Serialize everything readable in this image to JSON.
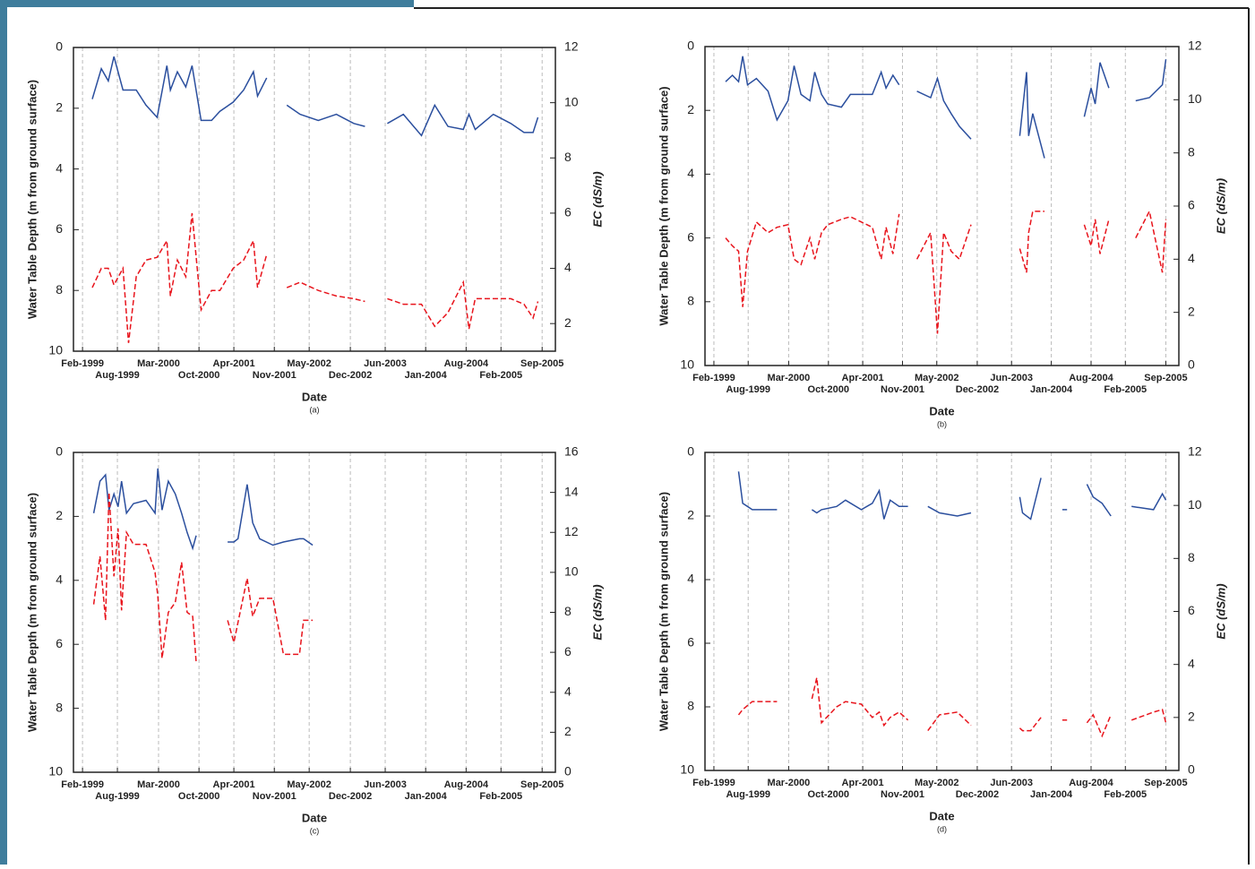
{
  "chart_data": [
    {
      "type": "line",
      "caption": "(a)",
      "xlabel": "Date",
      "ylabel": "Water Table Depth (m from ground surface)",
      "y2label": "EC (dS/m)",
      "xlim": [
        1998.95,
        2005.86
      ],
      "xticks": [
        {
          "value": 1999.08,
          "label": "Feb-1999"
        },
        {
          "value": 1999.58,
          "label": "Aug-1999"
        },
        {
          "value": 2000.17,
          "label": "Mar-2000"
        },
        {
          "value": 2000.75,
          "label": "Oct-2000"
        },
        {
          "value": 2001.25,
          "label": "Apr-2001"
        },
        {
          "value": 2001.83,
          "label": "Nov-2001"
        },
        {
          "value": 2002.33,
          "label": "May-2002"
        },
        {
          "value": 2002.92,
          "label": "Dec-2002"
        },
        {
          "value": 2003.42,
          "label": "Jun-2003"
        },
        {
          "value": 2004.0,
          "label": "Jan-2004"
        },
        {
          "value": 2004.58,
          "label": "Aug-2004"
        },
        {
          "value": 2005.08,
          "label": "Feb-2005"
        },
        {
          "value": 2005.67,
          "label": "Sep-2005"
        }
      ],
      "ylim": [
        10,
        0
      ],
      "yticks": [
        0,
        2,
        4,
        6,
        8,
        10
      ],
      "y2lim": [
        1,
        12
      ],
      "y2ticks": [
        2,
        4,
        6,
        8,
        10,
        12
      ],
      "grid": true,
      "x": [
        1999.22,
        1999.35,
        1999.45,
        1999.53,
        1999.66,
        1999.74,
        1999.85,
        1999.99,
        2000.15,
        2000.29,
        2000.34,
        2000.44,
        2000.56,
        2000.65,
        2000.78,
        2000.93,
        2001.05,
        2001.24,
        2001.39,
        2001.53,
        2001.59,
        2001.72,
        2001.86,
        2002.01,
        2002.2,
        2002.46,
        2002.72,
        2002.97,
        2003.13,
        2003.3,
        2003.45,
        2003.68,
        2003.94,
        2004.13,
        2004.32,
        2004.54,
        2004.62,
        2004.71,
        2004.97,
        2005.22,
        2005.41,
        2005.54,
        2005.61
      ],
      "series": [
        {
          "color": "#2b4f9e",
          "values": [
            1.7,
            0.7,
            1.1,
            0.3,
            1.4,
            1.4,
            1.4,
            1.9,
            2.3,
            0.6,
            1.4,
            0.8,
            1.3,
            0.6,
            2.4,
            2.4,
            2.1,
            1.8,
            1.4,
            0.8,
            1.6,
            1.0,
            null,
            1.9,
            2.2,
            2.4,
            2.2,
            2.5,
            2.6,
            null,
            2.5,
            2.2,
            2.9,
            1.9,
            2.6,
            2.7,
            2.2,
            2.7,
            2.2,
            2.5,
            2.8,
            2.8,
            2.3
          ]
        },
        {
          "color": "#e8141c",
          "dashed": true,
          "axis": "y2",
          "values": [
            3.3,
            4.0,
            4.0,
            3.4,
            4.0,
            1.3,
            3.7,
            4.3,
            4.4,
            5.0,
            3.0,
            4.3,
            3.7,
            6.0,
            2.5,
            3.2,
            3.2,
            4.0,
            4.3,
            5.0,
            3.3,
            4.5,
            null,
            3.3,
            3.5,
            3.2,
            3.0,
            2.9,
            2.8,
            null,
            2.9,
            2.7,
            2.7,
            1.9,
            2.4,
            3.5,
            1.8,
            2.9,
            2.9,
            2.9,
            2.7,
            2.2,
            2.8
          ]
        }
      ]
    },
    {
      "type": "line",
      "caption": "(b)",
      "xlabel": "Date",
      "ylabel": "Water Table Depth (m from ground surface)",
      "y2label": "EC (dS/m)",
      "xlim": [
        1998.95,
        2005.86
      ],
      "xticks": [
        {
          "value": 1999.08,
          "label": "Feb-1999"
        },
        {
          "value": 1999.58,
          "label": "Aug-1999"
        },
        {
          "value": 2000.17,
          "label": "Mar-2000"
        },
        {
          "value": 2000.75,
          "label": "Oct-2000"
        },
        {
          "value": 2001.25,
          "label": "Apr-2001"
        },
        {
          "value": 2001.83,
          "label": "Nov-2001"
        },
        {
          "value": 2002.33,
          "label": "May-2002"
        },
        {
          "value": 2002.92,
          "label": "Dec-2002"
        },
        {
          "value": 2003.42,
          "label": "Jun-2003"
        },
        {
          "value": 2004.0,
          "label": "Jan-2004"
        },
        {
          "value": 2004.58,
          "label": "Aug-2004"
        },
        {
          "value": 2005.08,
          "label": "Feb-2005"
        },
        {
          "value": 2005.67,
          "label": "Sep-2005"
        }
      ],
      "ylim": [
        10,
        0
      ],
      "yticks": [
        0,
        2,
        4,
        6,
        8,
        10
      ],
      "y2lim": [
        0,
        12
      ],
      "y2ticks": [
        0,
        2,
        4,
        6,
        8,
        10,
        12
      ],
      "grid": true,
      "x": [
        1999.25,
        1999.35,
        1999.44,
        1999.5,
        1999.57,
        1999.7,
        1999.87,
        2000.0,
        2000.16,
        2000.25,
        2000.35,
        2000.48,
        2000.55,
        2000.65,
        2000.74,
        2000.94,
        2001.07,
        2001.39,
        2001.52,
        2001.59,
        2001.69,
        2001.78,
        2001.9,
        2002.04,
        2002.24,
        2002.34,
        2002.43,
        2002.54,
        2002.66,
        2002.83,
        2003.2,
        2003.54,
        2003.64,
        2003.67,
        2003.73,
        2003.9,
        2004.2,
        2004.48,
        2004.58,
        2004.64,
        2004.71,
        2004.84,
        2005.0,
        2005.23,
        2005.43,
        2005.62,
        2005.67
      ],
      "series": [
        {
          "color": "#2b4f9e",
          "values": [
            1.1,
            0.9,
            1.1,
            0.3,
            1.2,
            1.0,
            1.4,
            2.3,
            1.7,
            0.6,
            1.5,
            1.7,
            0.8,
            1.5,
            1.8,
            1.9,
            1.5,
            1.5,
            0.8,
            1.3,
            0.9,
            1.2,
            null,
            1.4,
            1.6,
            1.0,
            1.7,
            2.1,
            2.5,
            2.9,
            null,
            2.8,
            0.8,
            2.8,
            2.1,
            3.5,
            null,
            2.2,
            1.3,
            1.8,
            0.5,
            1.3,
            null,
            1.7,
            1.6,
            1.2,
            0.4
          ]
        },
        {
          "color": "#e8141c",
          "dashed": true,
          "axis": "y2",
          "values": [
            4.8,
            4.5,
            4.3,
            2.2,
            4.3,
            5.4,
            5.0,
            5.2,
            5.3,
            4.0,
            3.8,
            4.8,
            4.0,
            5.0,
            5.3,
            5.5,
            5.6,
            5.2,
            4.0,
            5.2,
            4.2,
            5.7,
            null,
            4.0,
            5.0,
            1.2,
            5.0,
            4.3,
            4.0,
            5.3,
            null,
            4.4,
            3.5,
            5.0,
            5.8,
            5.8,
            null,
            5.3,
            4.5,
            5.5,
            4.2,
            5.5,
            null,
            4.8,
            5.8,
            3.5,
            5.5
          ]
        }
      ]
    },
    {
      "type": "line",
      "caption": "(c)",
      "xlabel": "Date",
      "ylabel": "Water Table Depth (m from ground surface)",
      "y2label": "EC (dS/m)",
      "xlim": [
        1998.95,
        2005.86
      ],
      "xticks": [
        {
          "value": 1999.08,
          "label": "Feb-1999"
        },
        {
          "value": 1999.58,
          "label": "Aug-1999"
        },
        {
          "value": 2000.17,
          "label": "Mar-2000"
        },
        {
          "value": 2000.75,
          "label": "Oct-2000"
        },
        {
          "value": 2001.25,
          "label": "Apr-2001"
        },
        {
          "value": 2001.83,
          "label": "Nov-2001"
        },
        {
          "value": 2002.33,
          "label": "May-2002"
        },
        {
          "value": 2002.92,
          "label": "Dec-2002"
        },
        {
          "value": 2003.42,
          "label": "Jun-2003"
        },
        {
          "value": 2004.0,
          "label": "Jan-2004"
        },
        {
          "value": 2004.58,
          "label": "Aug-2004"
        },
        {
          "value": 2005.08,
          "label": "Feb-2005"
        },
        {
          "value": 2005.67,
          "label": "Sep-2005"
        }
      ],
      "ylim": [
        10,
        0
      ],
      "yticks": [
        0,
        2,
        4,
        6,
        8,
        10
      ],
      "y2lim": [
        0,
        16
      ],
      "y2ticks": [
        0,
        2,
        4,
        6,
        8,
        10,
        12,
        14,
        16
      ],
      "grid": true,
      "x": [
        1999.24,
        1999.33,
        1999.41,
        1999.46,
        1999.53,
        1999.59,
        1999.64,
        1999.71,
        1999.81,
        1999.99,
        2000.12,
        2000.16,
        2000.22,
        2000.31,
        2000.41,
        2000.5,
        2000.58,
        2000.66,
        2000.71,
        2000.9,
        2001.16,
        2001.25,
        2001.31,
        2001.44,
        2001.52,
        2001.62,
        2001.81,
        2001.96,
        2002.19,
        2002.25,
        2002.38
      ],
      "series": [
        {
          "color": "#2b4f9e",
          "values": [
            1.9,
            0.9,
            0.7,
            1.8,
            1.3,
            1.7,
            0.9,
            1.9,
            1.6,
            1.5,
            1.9,
            0.5,
            1.8,
            0.9,
            1.3,
            1.9,
            2.5,
            3.0,
            2.6,
            null,
            2.8,
            2.8,
            2.7,
            1.0,
            2.2,
            2.7,
            2.9,
            2.8,
            2.7,
            2.7,
            2.9
          ]
        },
        {
          "color": "#e8141c",
          "dashed": true,
          "axis": "y2",
          "values": [
            8.4,
            10.8,
            7.6,
            14.0,
            9.8,
            12.2,
            8.1,
            12.0,
            11.4,
            11.4,
            10.0,
            8.8,
            5.7,
            8.0,
            8.5,
            10.5,
            8.0,
            7.8,
            5.5,
            null,
            7.6,
            6.5,
            7.5,
            9.7,
            7.8,
            8.7,
            8.7,
            5.9,
            5.9,
            7.6,
            7.6
          ]
        }
      ]
    },
    {
      "type": "line",
      "caption": "(d)",
      "xlabel": "Date",
      "ylabel": "Water Table Depth (m from ground surface)",
      "y2label": "EC (dS/m)",
      "xlim": [
        1998.95,
        2005.86
      ],
      "xticks": [
        {
          "value": 1999.08,
          "label": "Feb-1999"
        },
        {
          "value": 1999.58,
          "label": "Aug-1999"
        },
        {
          "value": 2000.17,
          "label": "Mar-2000"
        },
        {
          "value": 2000.75,
          "label": "Oct-2000"
        },
        {
          "value": 2001.25,
          "label": "Apr-2001"
        },
        {
          "value": 2001.83,
          "label": "Nov-2001"
        },
        {
          "value": 2002.33,
          "label": "May-2002"
        },
        {
          "value": 2002.92,
          "label": "Dec-2002"
        },
        {
          "value": 2003.42,
          "label": "Jun-2003"
        },
        {
          "value": 2004.0,
          "label": "Jan-2004"
        },
        {
          "value": 2004.58,
          "label": "Aug-2004"
        },
        {
          "value": 2005.08,
          "label": "Feb-2005"
        },
        {
          "value": 2005.67,
          "label": "Sep-2005"
        }
      ],
      "ylim": [
        10,
        0
      ],
      "yticks": [
        0,
        2,
        4,
        6,
        8,
        10
      ],
      "y2lim": [
        0,
        12
      ],
      "y2ticks": [
        0,
        2,
        4,
        6,
        8,
        10,
        12
      ],
      "grid": true,
      "x": [
        1999.44,
        1999.5,
        1999.64,
        2000.0,
        2000.2,
        2000.51,
        2000.58,
        2000.65,
        2000.87,
        2001.0,
        2001.23,
        2001.39,
        2001.49,
        2001.56,
        2001.65,
        2001.78,
        2001.91,
        2002.0,
        2002.2,
        2002.37,
        2002.63,
        2002.83,
        2003.2,
        2003.54,
        2003.58,
        2003.7,
        2003.85,
        2003.92,
        2004.16,
        2004.23,
        2004.3,
        2004.52,
        2004.61,
        2004.74,
        2004.87,
        2005.0,
        2005.17,
        2005.49,
        2005.62,
        2005.67
      ],
      "series": [
        {
          "color": "#2b4f9e",
          "values": [
            0.6,
            1.6,
            1.8,
            1.8,
            null,
            1.8,
            1.9,
            1.8,
            1.7,
            1.5,
            1.8,
            1.6,
            1.2,
            2.1,
            1.5,
            1.7,
            1.7,
            null,
            1.7,
            1.9,
            2.0,
            1.9,
            null,
            1.4,
            1.9,
            2.1,
            0.8,
            null,
            1.8,
            1.8,
            null,
            1.0,
            1.4,
            1.6,
            2.0,
            null,
            1.7,
            1.8,
            1.3,
            1.5
          ]
        },
        {
          "color": "#e8141c",
          "dashed": true,
          "axis": "y2",
          "values": [
            2.1,
            2.3,
            2.6,
            2.6,
            null,
            2.7,
            3.5,
            1.8,
            2.4,
            2.6,
            2.5,
            2.0,
            2.2,
            1.7,
            2.0,
            2.2,
            1.9,
            null,
            1.5,
            2.1,
            2.2,
            1.7,
            null,
            1.6,
            1.5,
            1.5,
            2.0,
            null,
            1.9,
            1.9,
            null,
            1.8,
            2.1,
            1.3,
            2.1,
            null,
            1.9,
            2.2,
            2.3,
            1.8
          ]
        }
      ]
    }
  ]
}
